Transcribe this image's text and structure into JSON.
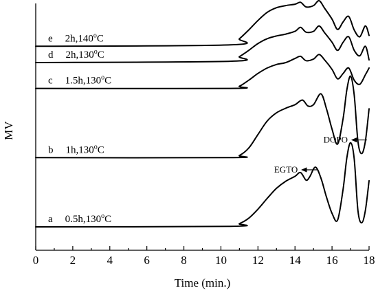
{
  "chart_data": {
    "type": "line",
    "title": "",
    "xlabel": "Time (min.)",
    "ylabel": "MV",
    "xlim": [
      0,
      18
    ],
    "xticks": [
      0,
      2,
      4,
      6,
      8,
      10,
      12,
      14,
      16,
      18
    ],
    "y_ticks_shown": false,
    "grid": false,
    "series": [
      {
        "name": "a   0.5h,130°C",
        "letter": "a",
        "condition": "0.5h,130",
        "unit": "C",
        "baseline": 0,
        "x": [
          0,
          10.5,
          11,
          11.5,
          12,
          12.5,
          13,
          13.5,
          14,
          14.3,
          14.6,
          14.8,
          15.1,
          15.4,
          15.7,
          16,
          16.3,
          16.6,
          16.8,
          17,
          17.2,
          17.4,
          17.6,
          17.8,
          18
        ],
        "y": [
          0,
          0.02,
          0.12,
          0.32,
          0.65,
          1.05,
          1.42,
          1.68,
          1.86,
          2,
          1.72,
          1.85,
          2.2,
          1.8,
          1.1,
          0.5,
          0.25,
          1.4,
          2.55,
          3.1,
          2.5,
          0.6,
          0.15,
          0.6,
          1.7
        ]
      },
      {
        "name": "b   1h,130°C",
        "letter": "b",
        "condition": "1h,130",
        "unit": "C",
        "baseline": 2.55,
        "x": [
          0,
          10.5,
          11,
          11.5,
          12,
          12.5,
          13,
          13.5,
          14,
          14.4,
          14.7,
          15,
          15.4,
          15.7,
          16,
          16.3,
          16.6,
          16.8,
          17,
          17.2,
          17.4,
          17.6,
          17.8,
          18
        ],
        "y": [
          0,
          0,
          0.08,
          0.35,
          0.85,
          1.35,
          1.65,
          1.82,
          1.95,
          2.12,
          1.9,
          1.95,
          2.35,
          1.8,
          1.05,
          0.5,
          1.45,
          2.5,
          3,
          2.3,
          0.6,
          0.15,
          0.6,
          1.8
        ]
      },
      {
        "name": "c   1.5h,130°C",
        "letter": "c",
        "condition": "1.5h,130",
        "unit": "C",
        "baseline": 5.1,
        "x": [
          0,
          10.5,
          11,
          11.5,
          12,
          12.5,
          13,
          13.5,
          14,
          14.3,
          14.6,
          15,
          15.3,
          15.6,
          16,
          16.3,
          16.6,
          16.9,
          17.2,
          17.5,
          17.8,
          18
        ],
        "y": [
          0,
          0,
          0.08,
          0.3,
          0.55,
          0.75,
          0.88,
          0.95,
          1.1,
          1.18,
          1.02,
          1.08,
          1.25,
          1.05,
          0.7,
          0.35,
          0.55,
          0.75,
          0.3,
          0.15,
          0.5,
          0.75
        ]
      },
      {
        "name": "d   2h,130°C",
        "letter": "d",
        "condition": "2h,130",
        "unit": "C",
        "baseline": 6.05,
        "x": [
          0,
          10.5,
          11,
          11.5,
          12,
          12.5,
          13,
          13.5,
          14,
          14.3,
          14.6,
          15,
          15.3,
          15.6,
          16,
          16.3,
          16.6,
          16.9,
          17.2,
          17.5,
          17.8,
          18
        ],
        "y": [
          0,
          0.05,
          0.22,
          0.45,
          0.7,
          0.88,
          0.98,
          1.05,
          1.15,
          1.3,
          1.12,
          1.15,
          1.35,
          1.1,
          0.75,
          0.45,
          0.75,
          0.95,
          0.45,
          0.25,
          0.6,
          0.1
        ]
      },
      {
        "name": "e   2h,140°C",
        "letter": "e",
        "condition": "2h,140",
        "unit": "C",
        "baseline": 6.65,
        "x": [
          0,
          10.5,
          11,
          11.5,
          12,
          12.5,
          13,
          13.5,
          14,
          14.3,
          14.6,
          15,
          15.3,
          15.6,
          16,
          16.3,
          16.6,
          16.9,
          17.2,
          17.5,
          17.8,
          18
        ],
        "y": [
          0,
          0.05,
          0.28,
          0.6,
          0.95,
          1.25,
          1.42,
          1.5,
          1.55,
          1.62,
          1.45,
          1.5,
          1.68,
          1.4,
          1.0,
          0.62,
          0.9,
          1.1,
          0.6,
          0.35,
          0.75,
          0.4
        ]
      }
    ],
    "annotations": [
      {
        "text": "EGTO",
        "x": 14.3,
        "series": "a"
      },
      {
        "text": "DOPO",
        "x": 17.0,
        "series": "a"
      }
    ]
  }
}
